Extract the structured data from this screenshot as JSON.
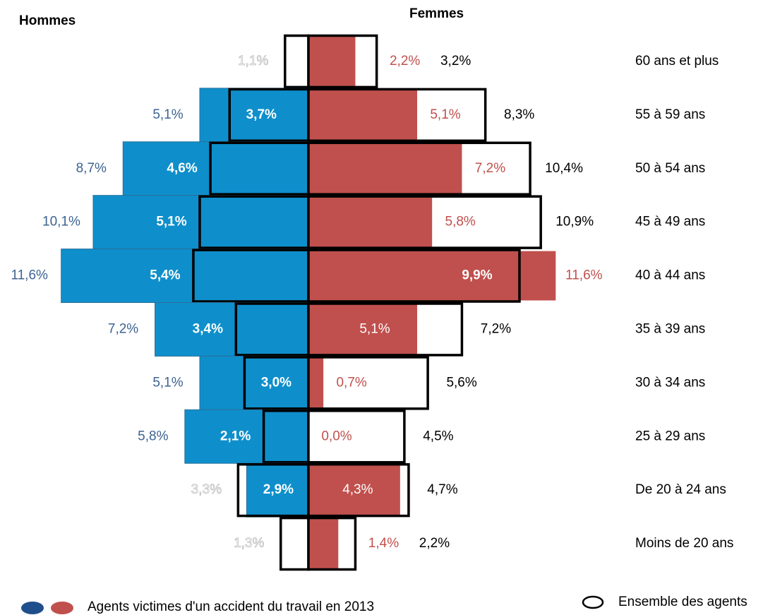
{
  "chart_data": {
    "type": "pyramid",
    "left_title": "Hommes",
    "right_title": "Femmes",
    "categories": [
      "60 ans et plus",
      "55 à 59 ans",
      "50 à 54 ans",
      "45 à 49 ans",
      "40 à 44 ans",
      "35 à 39 ans",
      "30 à 34 ans",
      "25 à 29 ans",
      "De 20 à 24 ans",
      "Moins de 20 ans"
    ],
    "legend": [
      "Agents victimes d'un accident du travail en 2013",
      "Ensemble des agents"
    ],
    "legend_colors": [
      "#1f4e8c",
      "#c0504d"
    ],
    "men_color": "#0e8fcb",
    "women_color": "#c0504d",
    "men": {
      "victims": [
        null,
        5.1,
        8.7,
        10.1,
        11.6,
        7.2,
        5.1,
        5.8,
        2.9,
        null
      ],
      "victims_labels": [
        null,
        "5,1%",
        "8,7%",
        "10,1%",
        "11,6%",
        "7,2%",
        "5,1%",
        "5,8%",
        "2,9%",
        null
      ],
      "ensemble": [
        1.1,
        3.7,
        4.6,
        5.1,
        5.4,
        3.4,
        3.0,
        2.1,
        3.3,
        1.3
      ],
      "ensemble_labels": [
        "1,1%",
        "3,7%",
        "4,6%",
        "5,1%",
        "5,4%",
        "3,4%",
        "3,0%",
        "2,1%",
        "3,3%",
        "1,3%"
      ]
    },
    "women": {
      "victims": [
        2.2,
        5.1,
        7.2,
        5.8,
        11.6,
        5.1,
        0.7,
        0.0,
        4.3,
        1.4
      ],
      "victims_labels": [
        "2,2%",
        "5,1%",
        "7,2%",
        "5,8%",
        "11,6%",
        "5,1%",
        "0,7%",
        "0,0%",
        "4,3%",
        "1,4%"
      ],
      "ensemble": [
        3.2,
        8.3,
        10.4,
        10.9,
        9.9,
        7.2,
        5.6,
        4.5,
        4.7,
        2.2
      ],
      "ensemble_labels": [
        "3,2%",
        "8,3%",
        "10,4%",
        "10,9%",
        "9,9%",
        "7,2%",
        "5,6%",
        "4,5%",
        "4,7%",
        "2,2%"
      ]
    }
  }
}
